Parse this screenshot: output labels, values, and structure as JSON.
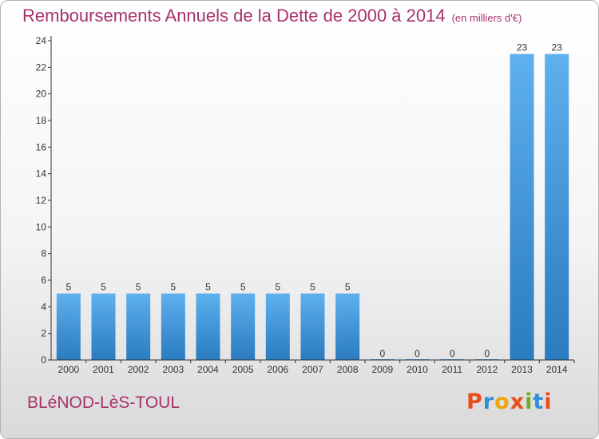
{
  "chart_data": {
    "type": "bar",
    "title": "Remboursements Annuels de la Dette de 2000 à 2014",
    "unit_note": "(en milliers d'€)",
    "categories": [
      "2000",
      "2001",
      "2002",
      "2003",
      "2004",
      "2005",
      "2006",
      "2007",
      "2008",
      "2009",
      "2010",
      "2011",
      "2012",
      "2013",
      "2014"
    ],
    "values": [
      5,
      5,
      5,
      5,
      5,
      5,
      5,
      5,
      5,
      0,
      0,
      0,
      0,
      23,
      23
    ],
    "ylim": [
      0,
      24
    ],
    "yticks": [
      0,
      2,
      4,
      6,
      8,
      10,
      12,
      14,
      16,
      18,
      20,
      22,
      24
    ],
    "grid": false,
    "bar_color": "#4b9de3"
  },
  "commune": "BLéNOD-LèS-TOUL",
  "logo": {
    "letters": [
      "P",
      "r",
      "o",
      "x",
      "i",
      "t",
      "i"
    ],
    "colors": [
      "#e84e1b",
      "#2e8fd6",
      "#f0a30a",
      "#e84e1b",
      "#6ab023",
      "#2e8fd6",
      "#e84e1b"
    ]
  }
}
